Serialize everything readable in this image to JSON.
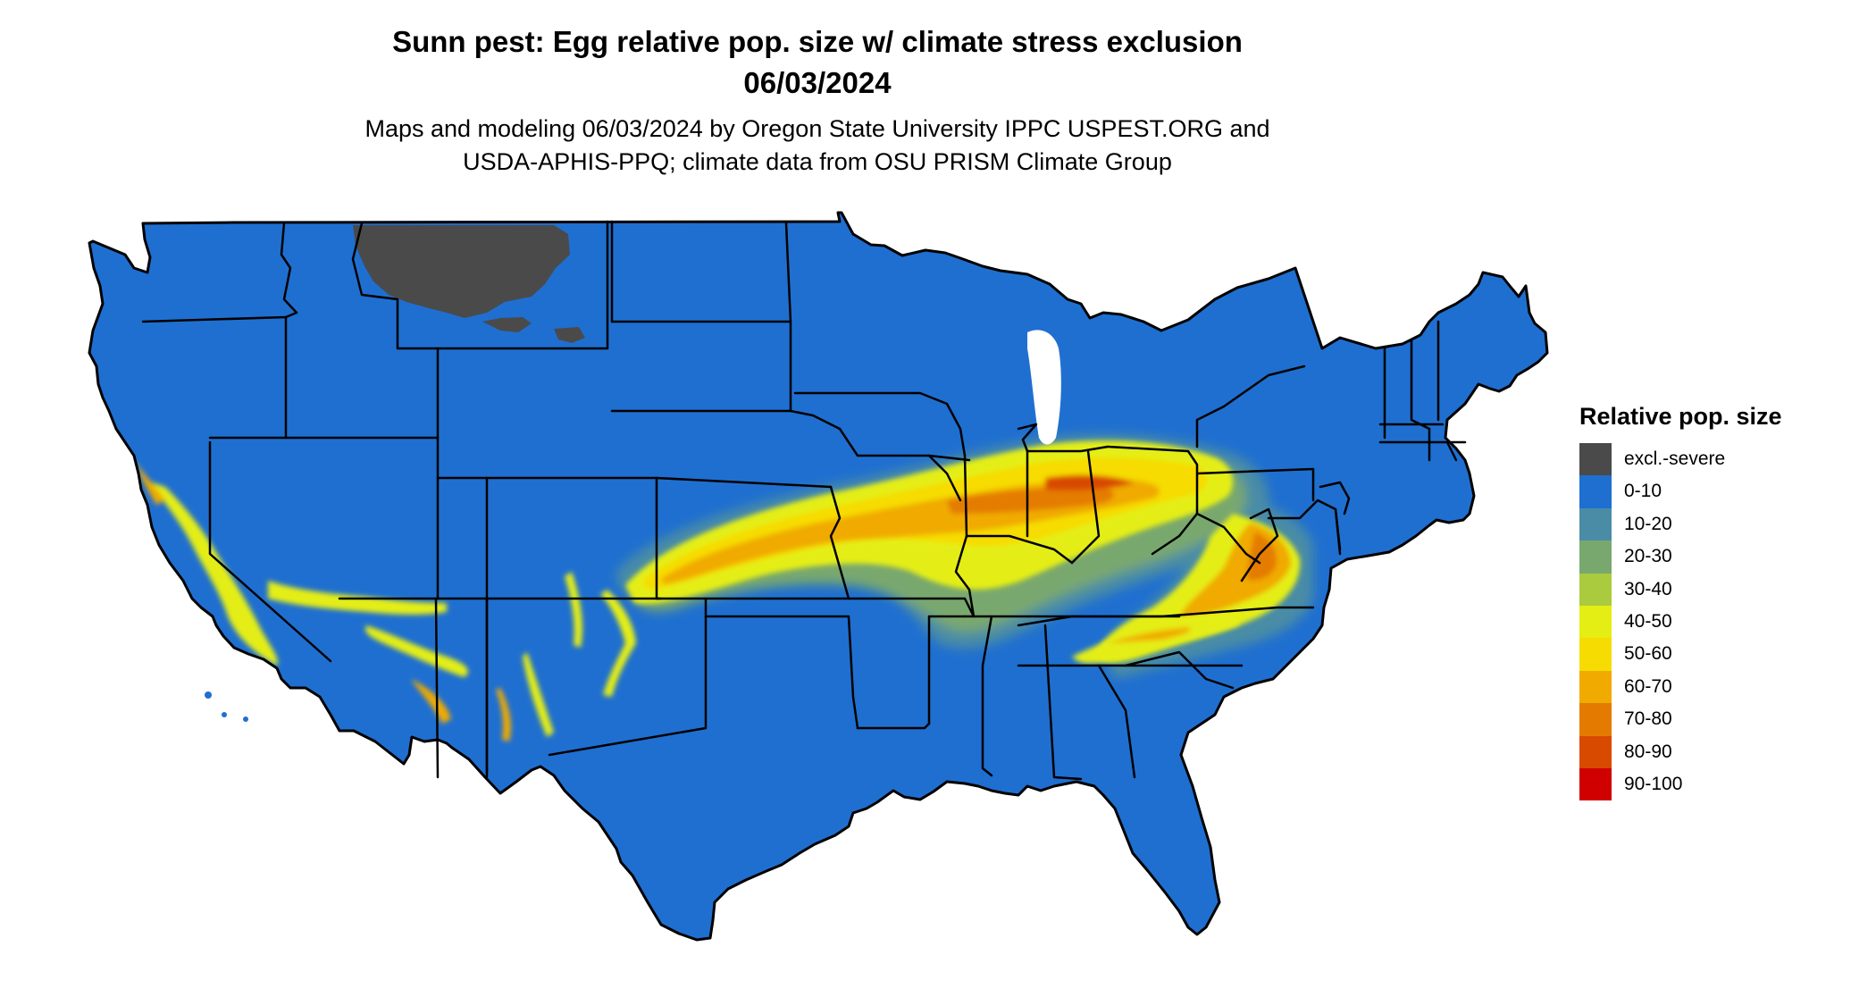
{
  "title": {
    "line1": "Sunn pest: Egg relative pop. size w/ climate stress exclusion",
    "line2": "06/03/2024"
  },
  "subtitle": {
    "line1": "Maps and modeling 06/03/2024 by Oregon State University IPPC USPEST.ORG and",
    "line2": "USDA-APHIS-PPQ; climate data from OSU PRISM Climate Group"
  },
  "legend": {
    "title": "Relative pop. size",
    "items": [
      {
        "label": "excl.-severe",
        "color": "#4a4a4a"
      },
      {
        "label": "0-10",
        "color": "#1f6fd0"
      },
      {
        "label": "10-20",
        "color": "#4a8ca6"
      },
      {
        "label": "20-30",
        "color": "#79a86e"
      },
      {
        "label": "30-40",
        "color": "#aacb3e"
      },
      {
        "label": "40-50",
        "color": "#e4ee14"
      },
      {
        "label": "50-60",
        "color": "#f6dc00"
      },
      {
        "label": "60-70",
        "color": "#f0aa00"
      },
      {
        "label": "70-80",
        "color": "#e47b00"
      },
      {
        "label": "80-90",
        "color": "#d84a00"
      },
      {
        "label": "90-100",
        "color": "#d00000"
      }
    ]
  },
  "map": {
    "base_color": "#1f6fd0",
    "border_color": "#000000"
  }
}
